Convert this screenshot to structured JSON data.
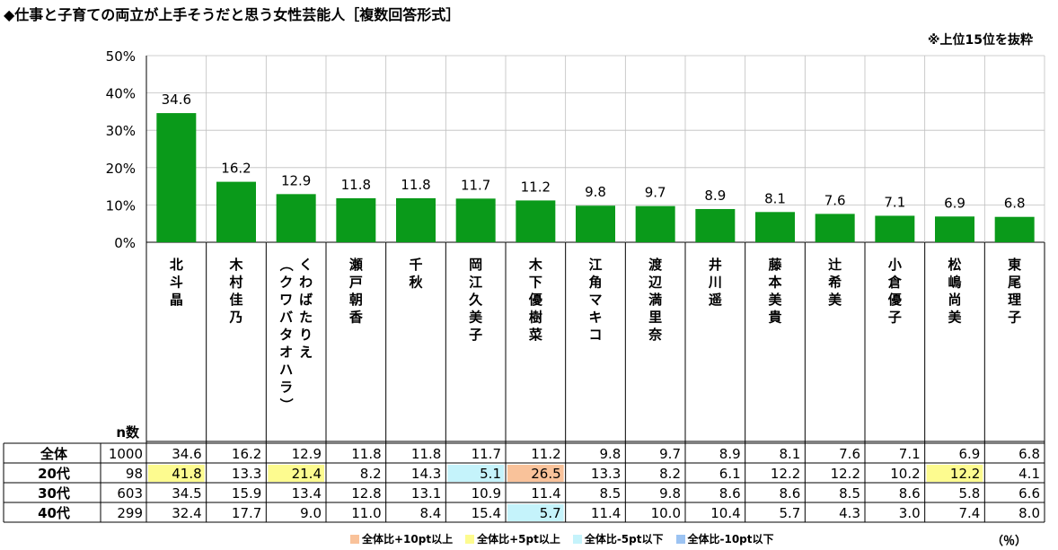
{
  "header": {
    "title": "◆仕事と子育ての両立が上手そうだと思う女性芸能人［複数回答形式］",
    "note": "※上位15位を抜粋"
  },
  "chart_data": {
    "type": "bar",
    "title": "◆仕事と子育ての両立が上手そうだと思う女性芸能人［複数回答形式］",
    "ylim": [
      0,
      50
    ],
    "yticks": [
      "0%",
      "10%",
      "20%",
      "30%",
      "40%",
      "50%"
    ],
    "grid": true,
    "categories": [
      "北斗晶",
      "木村佳乃",
      "くわばたりえ（クワバタオハラ）",
      "瀬戸朝香",
      "千秋",
      "岡江久美子",
      "木下優樹菜",
      "江角マキコ",
      "渡辺満里奈",
      "井川遥",
      "藤本美貴",
      "辻希美",
      "小倉優子",
      "松嶋尚美",
      "東尾理子"
    ],
    "values": [
      34.6,
      16.2,
      12.9,
      11.8,
      11.8,
      11.7,
      11.2,
      9.8,
      9.7,
      8.9,
      8.1,
      7.6,
      7.1,
      6.9,
      6.8
    ],
    "bar_color": "#0a9a1a"
  },
  "table": {
    "n_header": "n数",
    "rows": [
      {
        "label": "全体",
        "n": "1000",
        "values": [
          "34.6",
          "16.2",
          "12.9",
          "11.8",
          "11.8",
          "11.7",
          "11.2",
          "9.8",
          "9.7",
          "8.9",
          "8.1",
          "7.6",
          "7.1",
          "6.9",
          "6.8"
        ],
        "highlights": [
          null,
          null,
          null,
          null,
          null,
          null,
          null,
          null,
          null,
          null,
          null,
          null,
          null,
          null,
          null
        ]
      },
      {
        "label": "20代",
        "n": "98",
        "values": [
          "41.8",
          "13.3",
          "21.4",
          "8.2",
          "14.3",
          "5.1",
          "26.5",
          "13.3",
          "8.2",
          "6.1",
          "12.2",
          "12.2",
          "10.2",
          "12.2",
          "4.1"
        ],
        "highlights": [
          "plus5",
          null,
          "plus5",
          null,
          null,
          "minus5",
          "plus10",
          null,
          null,
          null,
          null,
          null,
          null,
          "plus5",
          null
        ]
      },
      {
        "label": "30代",
        "n": "603",
        "values": [
          "34.5",
          "15.9",
          "13.4",
          "12.8",
          "13.1",
          "10.9",
          "11.4",
          "8.5",
          "9.8",
          "8.6",
          "8.6",
          "8.5",
          "8.6",
          "5.8",
          "6.6"
        ],
        "highlights": [
          null,
          null,
          null,
          null,
          null,
          null,
          null,
          null,
          null,
          null,
          null,
          null,
          null,
          null,
          null
        ]
      },
      {
        "label": "40代",
        "n": "299",
        "values": [
          "32.4",
          "17.7",
          "9.0",
          "11.0",
          "8.4",
          "15.4",
          "5.7",
          "11.4",
          "10.0",
          "10.4",
          "5.7",
          "4.3",
          "3.0",
          "7.4",
          "8.0"
        ],
        "highlights": [
          null,
          null,
          null,
          null,
          null,
          null,
          "minus5",
          null,
          null,
          null,
          null,
          null,
          null,
          null,
          null
        ]
      }
    ]
  },
  "legend": [
    {
      "key": "plus10",
      "label": "全体比+10pt以上",
      "color": "#f9c29a"
    },
    {
      "key": "plus5",
      "label": "全体比+5pt以上",
      "color": "#fdfb8f"
    },
    {
      "key": "minus5",
      "label": "全体比-5pt以下",
      "color": "#c5f3fb"
    },
    {
      "key": "minus10",
      "label": "全体比-10pt以下",
      "color": "#9cc3f2"
    }
  ],
  "unit": "（％）"
}
